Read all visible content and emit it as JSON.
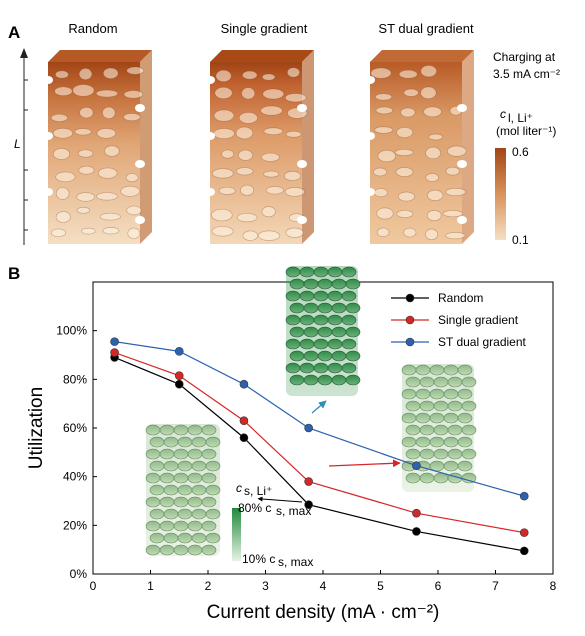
{
  "panel_a": {
    "letter": "A",
    "titles": [
      "Random",
      "Single gradient",
      "ST dual gradient"
    ],
    "condition_line1": "Charging at",
    "condition_line2": "3.5 mA cm⁻²",
    "length_label": "L",
    "colorbar_label_line1": "c",
    "colorbar_label_sub": "l, Li⁺",
    "colorbar_label_line2": "(mol liter⁻¹)",
    "colorbar_max": "0.6",
    "colorbar_min": "0.1",
    "colors": {
      "top": "#a24516",
      "bottom": "#f5dfc4"
    }
  },
  "panel_b": {
    "letter": "B",
    "inset_label_main": "c",
    "inset_label_sub": "s, Li⁺",
    "inset_max_label": "80% c",
    "inset_max_sub": "s, max",
    "inset_min_label": "10% c",
    "inset_min_sub": "s, max",
    "colors": {
      "dark_green": "#2f8d46",
      "light_green": "#a9c89a"
    }
  },
  "chart_data": {
    "type": "line",
    "xlabel": "Current density (mA · cm⁻²)",
    "ylabel": "Utilization",
    "xlim": [
      0,
      8
    ],
    "ylim": [
      0,
      1.2
    ],
    "x_ticks": [
      "0",
      "1",
      "2",
      "3",
      "4",
      "5",
      "6",
      "7",
      "8"
    ],
    "y_ticks": [
      "0%",
      "20%",
      "40%",
      "60%",
      "80%",
      "100%"
    ],
    "legend_position": "top-right",
    "grid": false,
    "series": [
      {
        "name": "Random",
        "color": "#000000",
        "x": [
          0.375,
          1.5,
          2.625,
          3.75,
          5.625,
          7.5
        ],
        "y": [
          0.89,
          0.78,
          0.56,
          0.285,
          0.175,
          0.095
        ]
      },
      {
        "name": "Single gradient",
        "color": "#d62728",
        "x": [
          0.375,
          1.5,
          2.625,
          3.75,
          5.625,
          7.5
        ],
        "y": [
          0.91,
          0.815,
          0.63,
          0.38,
          0.25,
          0.17
        ]
      },
      {
        "name": "ST dual gradient",
        "color": "#2c62b0",
        "x": [
          0.375,
          1.5,
          2.625,
          3.75,
          5.625,
          7.5
        ],
        "y": [
          0.955,
          0.915,
          0.78,
          0.6,
          0.445,
          0.32
        ]
      }
    ]
  }
}
